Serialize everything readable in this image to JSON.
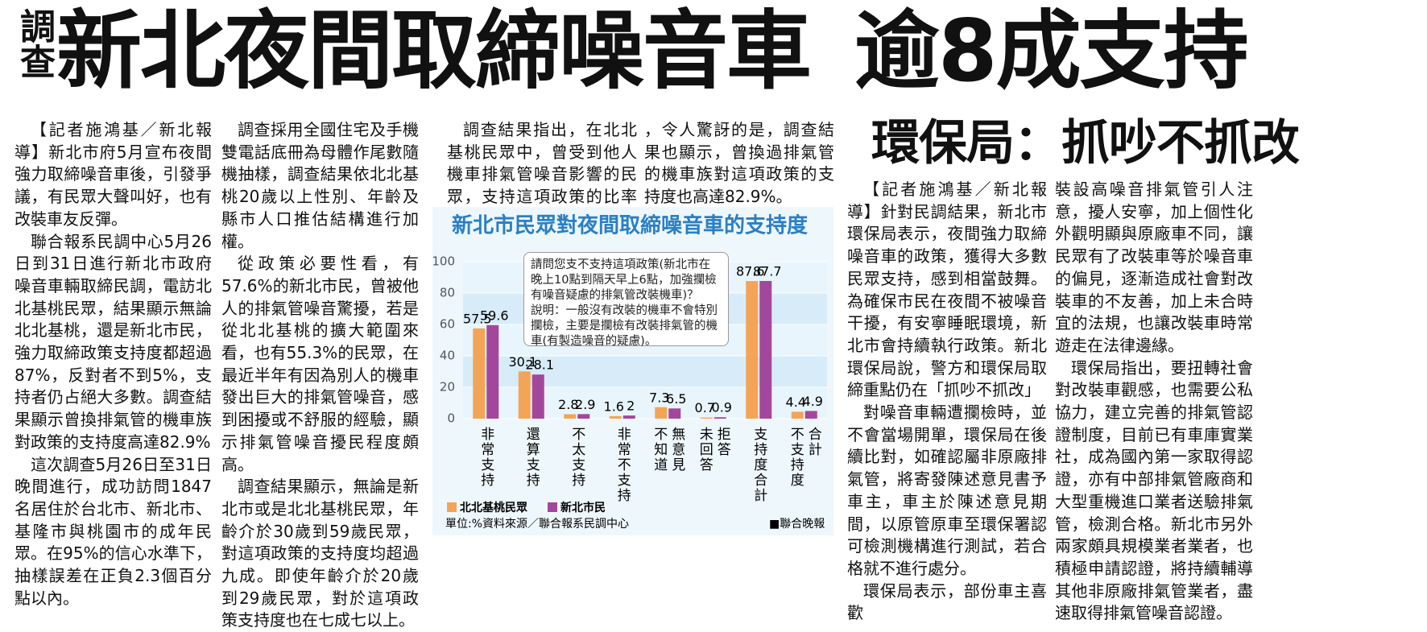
{
  "headline": {
    "tag": "調查",
    "title": "新北夜間取締噪音車 逾8成支持"
  },
  "columns": [
    [
      "【記者施鴻基／新北報導】新北市府5月宣布夜間強力取締噪音車後，引發爭議，有民眾大聲叫好，也有改裝車友反彈。",
      "聯合報系民調中心5月26日到31日進行新北市政府噪音車輛取締民調，電訪北北基桃民眾，結果顯示無論北北基桃，還是新北市民，強力取締政策支持度都超過87%，反對者不到5%，支持者仍占絕大多數。調查結果顯示曾換排氣管的機車族對政策的支持度高達82.9%",
      "這次調查5月26日至31日晚間進行，成功訪問1847名居住於台北市、新北市、基隆市與桃園市的成年民眾。在95%的信心水準下，抽樣誤差在正負2.3個百分點以內。"
    ],
    [
      "調查採用全國住宅及手機雙電話底冊為母體作尾數隨機抽樣，調查結果依北北基桃20歲以上性別、年齡及縣市人口推估結構進行加權。",
      "從政策必要性看，有57.6%的新北市民，曾被他人的排氣管噪音驚擾，若是從北北基桃的擴大範圍來看，也有55.3%的民眾，在最近半年有因為別人的機車發出巨大的排氣管噪音，感到困擾或不舒服的經驗，顯示排氣管噪音擾民程度頗高。",
      "調查結果顯示，無論是新北市或是北北基桃民眾，年齡介於30歲到59歲民眾，對這項政策的支持度均超過九成。即使年齡介於20歲到29歲民眾，對於這項政策支持度也在七成七以上。"
    ],
    [
      "調查結果指出，在北北基桃民眾中，曾受到他人機車排氣管噪音影響的民眾，支持這項政策的比率高達九成五以上"
    ],
    [
      "，令人驚訝的是，調查結果也顯示，曾換過排氣管的機車族對這項政策的支持度也高達82.9%。"
    ]
  ],
  "side_story": {
    "headline": "環保局：抓吵不抓改",
    "columns": [
      [
        "【記者施鴻基／新北報導】針對民調結果，新北市環保局表示，夜間強力取締噪音車的政策，獲得大多數民眾支持，感到相當鼓舞。為確保市民在夜間不被噪音干擾，有安寧睡眠環境，新北市會持續執行政策。新北環保局說，警方和環保局取締重點仍在「抓吵不抓改」",
        "對噪音車輛遭攔檢時，並不會當場開單，環保局在後續比對，如確認屬非原廠排氣管，將寄發陳述意見書予車主，車主於陳述意見期間，以原管原車至環保署認可檢測機構進行測試，若合格就不進行處分。",
        "環保局表示，部份車主喜歡"
      ],
      [
        "裝設高噪音排氣管引人注意，擾人安寧，加上個性化外觀明顯與原廠車不同，讓民眾有了改裝車等於噪音車的偏見，逐漸造成社會對改裝車的不友善，加上未合時宜的法規，也讓改裝車時常遊走在法律邊緣。",
        "環保局指出，要扭轉社會對改裝車觀感，也需要公私協力，建立完善的排氣管認證制度，目前已有車庫實業社，成為國內第一家取得認證，亦有中部排氣管廠商和大型重機進口業者送驗排氣管，檢測合格。新北市另外兩家頗具規模業者業者，也積極申請認證，將持續輔導其他非原廠排氣管業者，盡速取得排氣管噪音認證。"
      ]
    ]
  },
  "chart_data": {
    "type": "bar",
    "title": "新北市民眾對夜間取締噪音車的支持度",
    "categories": [
      [
        "非常支持"
      ],
      [
        "還算支持"
      ],
      [
        "不太支持"
      ],
      [
        "非常不支持"
      ],
      [
        "不知道",
        "無意見"
      ],
      [
        "未回答",
        "拒答"
      ],
      [
        "支持度合計"
      ],
      [
        "不支持度",
        "合計"
      ]
    ],
    "series": [
      {
        "name": "北北基桃民眾",
        "color": "#f4a456",
        "values": [
          57.5,
          30.1,
          2.8,
          1.6,
          7.3,
          0.7,
          87.6,
          4.4
        ]
      },
      {
        "name": "新北市民",
        "color": "#a3479c",
        "values": [
          59.6,
          28.1,
          2.9,
          2.0,
          6.5,
          0.9,
          87.7,
          4.9
        ]
      }
    ],
    "ylim": [
      0,
      100
    ],
    "yticks": [
      0,
      20,
      40,
      60,
      80,
      100
    ],
    "annotation": [
      "請問您支不支持這項政策(新北市在晚上10點到隔天早上6點，加強攔檢有噪音疑慮的排氣管改裝機車)？",
      "說明：一般沒有改裝的機車不會特別攔檢，主要是攔檢有改裝排氣管的機車(有製造噪音的疑慮)。"
    ],
    "unit": "單位:%",
    "source": "資料來源／聯合報系民調中心",
    "credit": "■聯合晚報"
  }
}
